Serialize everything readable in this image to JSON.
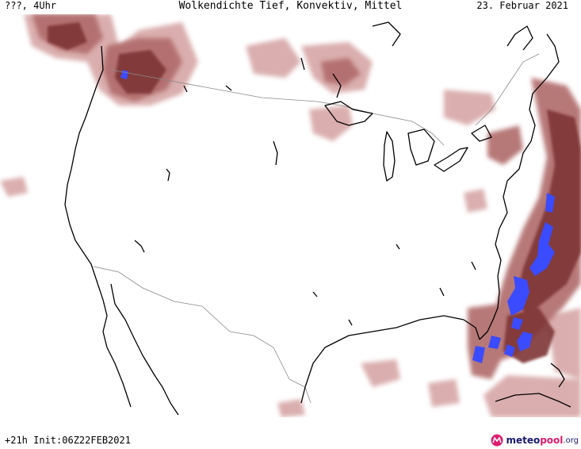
{
  "header": {
    "left": "???, 4Uhr",
    "title": "Wolkendichte  Tief, Konvektiv, Mittel",
    "date": "23. Februar 2021"
  },
  "footer": {
    "run_info": "+21h Init:06Z22FEB2021"
  },
  "brand": {
    "part1": "meteo",
    "part2": "pool",
    "part3": ".org"
  },
  "colors": {
    "cloud_light": "#c98a8a",
    "cloud_medium": "#a85a5a",
    "cloud_dense": "#7a2f2f",
    "convective": "#3b4bff",
    "coastline": "#000000",
    "border": "#8a8a8a"
  }
}
